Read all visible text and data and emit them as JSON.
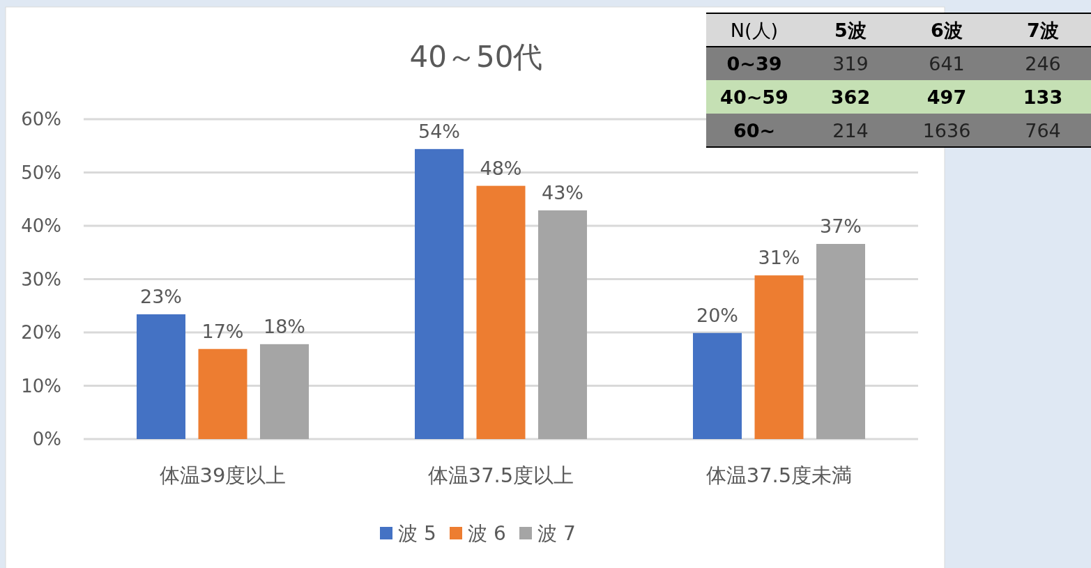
{
  "chart_data": [
    {
      "type": "bar",
      "title": "40～50代",
      "categories": [
        "体温39度以上",
        "体温37.5度以上",
        "体温37.5度未満"
      ],
      "series": [
        {
          "name": "波 5",
          "color": "#4472c4",
          "values": [
            23.4,
            54.4,
            19.9
          ],
          "value_labels": [
            "23%",
            "54%",
            "20%"
          ]
        },
        {
          "name": "波 6",
          "color": "#ed7d31",
          "values": [
            16.9,
            47.5,
            30.7
          ],
          "value_labels": [
            "17%",
            "48%",
            "31%"
          ]
        },
        {
          "name": "波 7",
          "color": "#a5a5a5",
          "values": [
            17.8,
            42.9,
            36.6
          ],
          "value_labels": [
            "18%",
            "43%",
            "37%"
          ]
        }
      ],
      "ylim": [
        0,
        60
      ],
      "yticks": [
        {
          "value": 0,
          "label": "0%"
        },
        {
          "value": 10,
          "label": "10%"
        },
        {
          "value": 20,
          "label": "20%"
        },
        {
          "value": 30,
          "label": "30%"
        },
        {
          "value": 40,
          "label": "40%"
        },
        {
          "value": 50,
          "label": "50%"
        },
        {
          "value": 60,
          "label": "60%"
        }
      ],
      "grid": "y",
      "legend": "bottom"
    },
    {
      "type": "other",
      "ylabel": "N(人)",
      "categories": [
        "5波",
        "6波",
        "7波"
      ],
      "y_categories": [
        "0~39",
        "40~59",
        "60~"
      ],
      "cell_labels": [
        [
          "319",
          "641",
          "246"
        ],
        [
          "362",
          "497",
          "133"
        ],
        [
          "214",
          "1636",
          "764"
        ]
      ],
      "colors": [
        "#d9d9d9",
        "#7f7f7f",
        "#c5e0b4",
        "#7f7f7f"
      ]
    }
  ]
}
